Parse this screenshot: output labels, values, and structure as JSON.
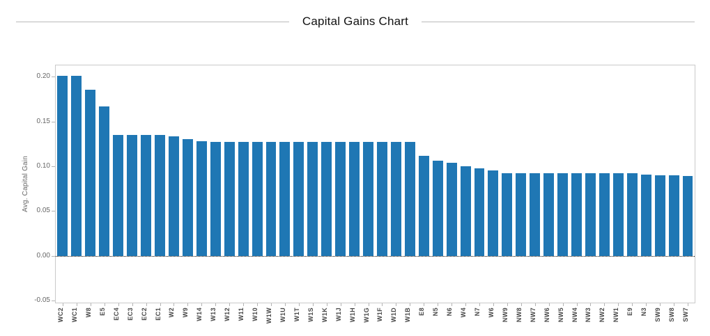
{
  "chart_data": {
    "type": "bar",
    "title": "Capital Gains Chart",
    "xlabel": "",
    "ylabel": "Avg. Capital Gain",
    "categories": [
      "WC2",
      "WC1",
      "W8",
      "E5",
      "EC4",
      "EC3",
      "EC2",
      "EC1",
      "W2",
      "W9",
      "W14",
      "W13",
      "W12",
      "W11",
      "W10",
      "W1W",
      "W1U",
      "W1T",
      "W1S",
      "W1K",
      "W1J",
      "W1H",
      "W1G",
      "W1F",
      "W1D",
      "W1B",
      "E8",
      "N5",
      "N6",
      "W4",
      "N7",
      "W6",
      "NW9",
      "NW8",
      "NW7",
      "NW6",
      "NW5",
      "NW4",
      "NW3",
      "NW2",
      "NW1",
      "E9",
      "N3",
      "SW9",
      "SW8",
      "SW7"
    ],
    "values": [
      0.201,
      0.201,
      0.185,
      0.167,
      0.135,
      0.135,
      0.135,
      0.135,
      0.133,
      0.13,
      0.128,
      0.127,
      0.127,
      0.127,
      0.127,
      0.127,
      0.127,
      0.127,
      0.127,
      0.127,
      0.127,
      0.127,
      0.127,
      0.127,
      0.127,
      0.127,
      0.112,
      0.106,
      0.104,
      0.1,
      0.098,
      0.095,
      0.092,
      0.092,
      0.092,
      0.092,
      0.092,
      0.092,
      0.092,
      0.092,
      0.092,
      0.092,
      0.091,
      0.09,
      0.09,
      0.089
    ],
    "yticks": [
      0.2,
      0.15,
      0.1,
      0.05,
      0.0,
      -0.05
    ],
    "ytick_labels": [
      "0.20",
      "0.15",
      "0.10",
      "0.05",
      "0.00",
      "-0.05"
    ],
    "ylim": [
      -0.052,
      0.2125
    ],
    "bar_color": "#1f77b4",
    "bar_width_fraction": 0.75,
    "grid": false,
    "legend": "none",
    "zero_line_style": "dotted",
    "zero_line_color": "#000000",
    "x_label_rotation": 90
  }
}
